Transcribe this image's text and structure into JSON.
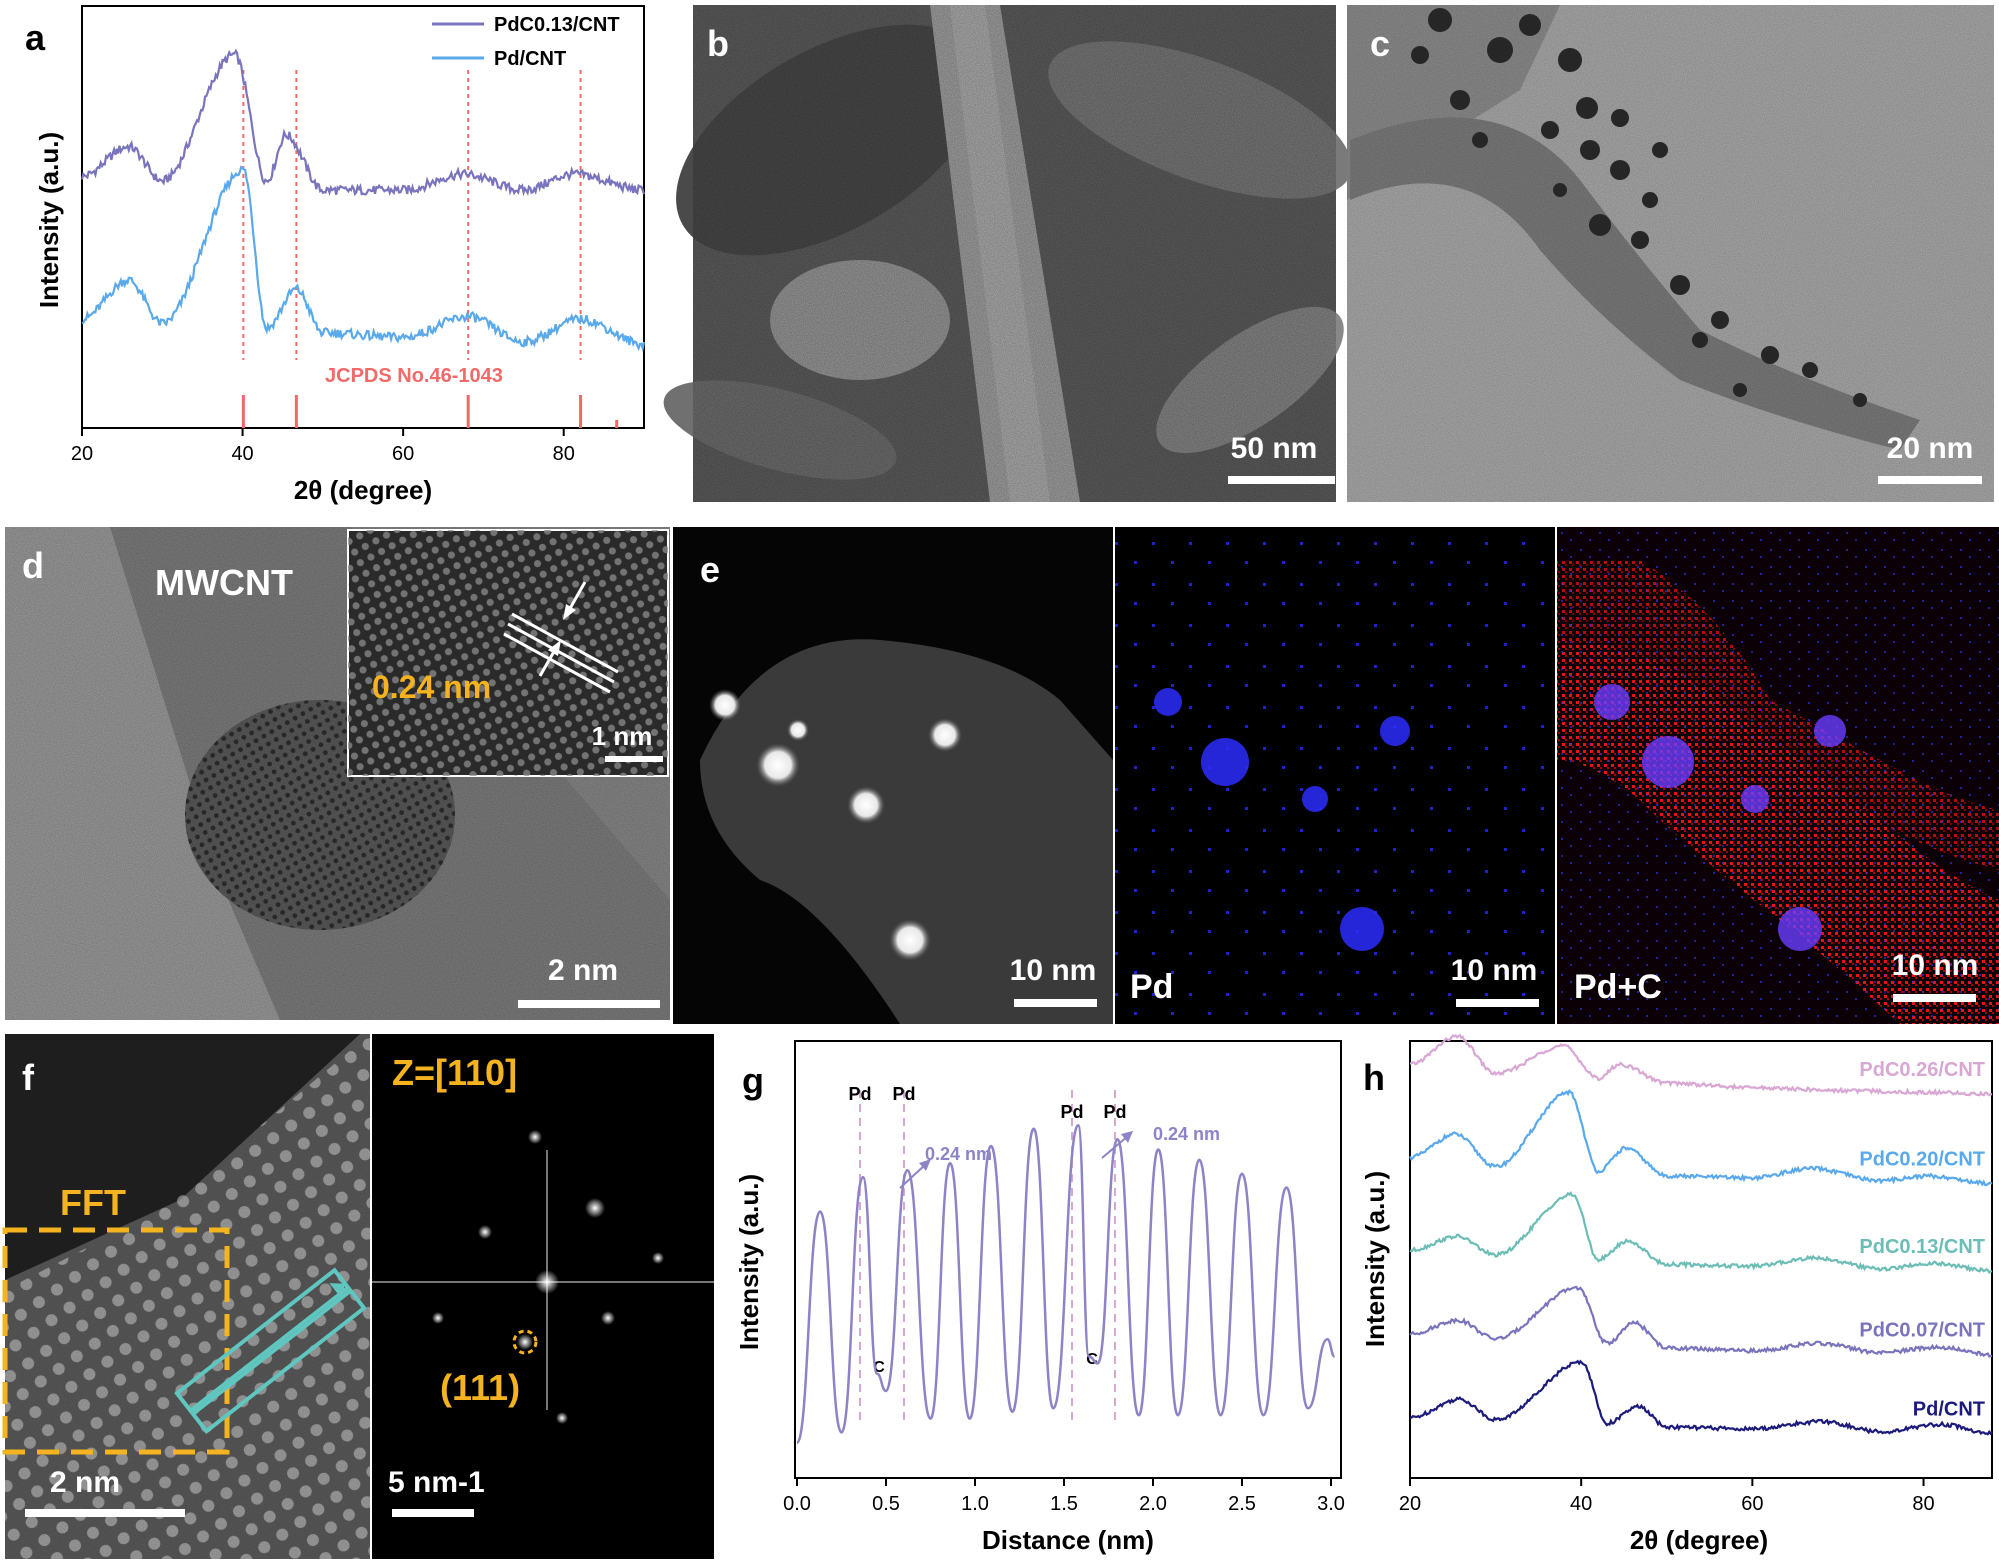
{
  "panel_letters": {
    "a": "a",
    "b": "b",
    "c": "c",
    "d": "d",
    "e": "e",
    "f": "f",
    "g": "g",
    "h": "h"
  },
  "colors": {
    "purple": "#7a74bd",
    "lightblue": "#5aa9ea",
    "ref": "#f06a6a",
    "gline": "#8c84c6",
    "teal": "#6cbdb6",
    "pink": "#d9a7d3",
    "navy": "#1c1a7a",
    "orange": "#f5b41f"
  },
  "panel_a": {
    "legend": [
      "PdC0.13/CNT",
      "Pd/CNT"
    ],
    "ylabel": "Intensity (a.u.)",
    "xlabel": "2θ (degree)",
    "ref_label": "JCPDS No.46-1043"
  },
  "panel_b": {
    "scale": "50 nm"
  },
  "panel_c": {
    "scale": "20 nm"
  },
  "panel_d": {
    "label": "MWCNT",
    "inset_spacing": "0.24 nm",
    "inset_scale": "1 nm",
    "scale": "2 nm"
  },
  "panel_e": {
    "scale1": "10 nm",
    "scale2": "10 nm",
    "scale3": "10 nm",
    "label_pd": "Pd",
    "label_pdc": "Pd+C"
  },
  "panel_f": {
    "fft_label": "FFT",
    "zone": "Z=[110]",
    "spot": "(111)",
    "scale1": "2 nm",
    "scale2": "5 nm-1"
  },
  "panel_g": {
    "ylabel": "Intensity (a.u.)",
    "xlabel": "Distance (nm)",
    "peak_labels": [
      "Pd",
      "Pd",
      "Pd",
      "Pd"
    ],
    "c_labels": [
      "C",
      "C"
    ],
    "spacing_labels": [
      "0.24 nm",
      "0.24 nm"
    ]
  },
  "panel_h": {
    "ylabel": "Intensity (a.u.)",
    "xlabel": "2θ (degree)",
    "series_labels": [
      "PdC0.26/CNT",
      "PdC0.20/CNT",
      "PdC0.13/CNT",
      "PdC0.07/CNT",
      "Pd/CNT"
    ]
  },
  "chart_data": [
    {
      "type": "line",
      "title": "",
      "xlabel": "2θ (degree)",
      "ylabel": "Intensity (a.u.)",
      "xlim": [
        20,
        90
      ],
      "xticks": [
        20,
        40,
        60,
        80
      ],
      "legend_position": "top-right",
      "reference": {
        "name": "JCPDS No.46-1043",
        "x": [
          40.1,
          46.7,
          68.1,
          82.1,
          86.6
        ]
      },
      "series": [
        {
          "name": "PdC0.13/CNT",
          "x": [
            20,
            25.8,
            30,
            39.0,
            43,
            45.4,
            50,
            60,
            67.5,
            75,
            81.2,
            90
          ],
          "y": [
            0.92,
            1.05,
            0.9,
            1.45,
            0.9,
            1.1,
            0.86,
            0.86,
            0.93,
            0.86,
            0.93,
            0.86
          ]
        },
        {
          "name": "Pd/CNT",
          "x": [
            20,
            25.8,
            30,
            40.1,
            43,
            46.7,
            50,
            60,
            68.1,
            75,
            82.1,
            90
          ],
          "y": [
            0.3,
            0.47,
            0.28,
            0.95,
            0.26,
            0.43,
            0.24,
            0.22,
            0.31,
            0.2,
            0.3,
            0.19
          ]
        }
      ]
    },
    {
      "type": "line",
      "title": "",
      "xlabel": "Distance (nm)",
      "ylabel": "Intensity (a.u.)",
      "xlim": [
        0.0,
        3.0
      ],
      "xticks": [
        0.0,
        0.5,
        1.0,
        1.5,
        2.0,
        2.5,
        3.0
      ],
      "series": [
        {
          "name": "",
          "x": [
            0.0,
            0.13,
            0.25,
            0.37,
            0.45,
            0.5,
            0.62,
            0.75,
            0.86,
            0.97,
            1.09,
            1.21,
            1.33,
            1.44,
            1.58,
            1.64,
            1.69,
            1.8,
            1.92,
            2.03,
            2.14,
            2.26,
            2.38,
            2.5,
            2.62,
            2.75,
            2.87,
            2.98,
            3.02
          ],
          "y": [
            0.05,
            0.72,
            0.08,
            0.82,
            0.25,
            0.2,
            0.84,
            0.12,
            0.86,
            0.12,
            0.91,
            0.14,
            0.96,
            0.15,
            0.97,
            0.3,
            0.28,
            0.93,
            0.13,
            0.9,
            0.13,
            0.87,
            0.13,
            0.83,
            0.13,
            0.79,
            0.15,
            0.35,
            0.3
          ]
        }
      ]
    },
    {
      "type": "line",
      "title": "",
      "xlabel": "2θ (degree)",
      "ylabel": "Intensity (a.u.)",
      "xlim": [
        20,
        88
      ],
      "xticks": [
        20,
        40,
        60,
        80
      ],
      "series": [
        {
          "name": "PdC0.26/CNT",
          "x": [
            20,
            25.5,
            30,
            37.9,
            42,
            44.5,
            50,
            60,
            70,
            80,
            88
          ],
          "y": [
            4.2,
            4.5,
            4.1,
            4.4,
            4.05,
            4.2,
            4.0,
            3.95,
            3.92,
            3.9,
            3.88
          ]
        },
        {
          "name": "PdC0.20/CNT",
          "x": [
            20,
            25.3,
            30,
            38.6,
            42,
            45.2,
            50,
            60,
            66.9,
            75,
            80.5,
            88
          ],
          "y": [
            3.2,
            3.45,
            3.1,
            3.9,
            3.05,
            3.3,
            3.0,
            2.98,
            3.08,
            2.95,
            3.0,
            2.92
          ]
        },
        {
          "name": "PdC0.13/CNT",
          "x": [
            20,
            25.5,
            30,
            39.0,
            42,
            45.4,
            50,
            60,
            67.3,
            75,
            81.0,
            88
          ],
          "y": [
            2.2,
            2.35,
            2.15,
            2.8,
            2.1,
            2.3,
            2.05,
            2.03,
            2.12,
            2.0,
            2.06,
            1.98
          ]
        },
        {
          "name": "PdC0.07/CNT",
          "x": [
            20,
            25.6,
            30,
            39.6,
            43,
            46.2,
            50,
            60,
            67.8,
            75,
            81.6,
            88
          ],
          "y": [
            1.3,
            1.45,
            1.25,
            1.8,
            1.2,
            1.42,
            1.15,
            1.12,
            1.2,
            1.1,
            1.16,
            1.08
          ]
        },
        {
          "name": "Pd/CNT",
          "x": [
            20,
            25.8,
            30,
            40.1,
            43,
            46.7,
            50,
            60,
            68.1,
            75,
            82.1,
            88
          ],
          "y": [
            0.4,
            0.6,
            0.38,
            1.0,
            0.34,
            0.52,
            0.3,
            0.28,
            0.36,
            0.25,
            0.33,
            0.23
          ]
        }
      ]
    }
  ]
}
